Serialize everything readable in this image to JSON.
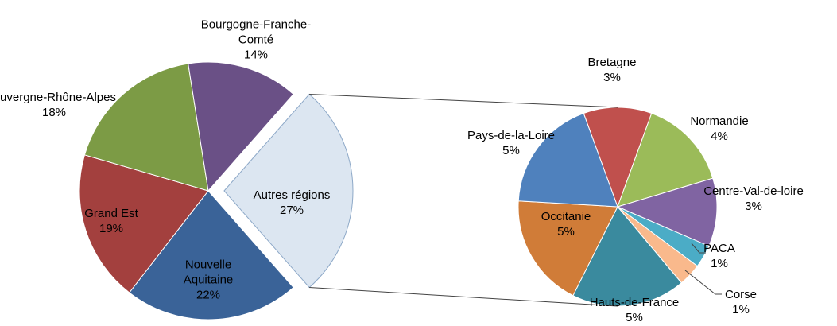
{
  "chart_data": [
    {
      "type": "pie",
      "categories": [
        "Autres régions",
        "Nouvelle Aquitaine",
        "Grand Est",
        "Auvergne-Rhône-Alpes",
        "Bourgogne-Franche-Comté"
      ],
      "values": [
        27,
        22,
        19,
        18,
        14
      ],
      "value_labels": [
        "27%",
        "22%",
        "19%",
        "18%",
        "14%"
      ],
      "colors": [
        "#dce6f1",
        "#3a6398",
        "#a3403e",
        "#7c9b45",
        "#6a5086"
      ]
    },
    {
      "type": "pie",
      "categories": [
        "Bretagne",
        "Normandie",
        "Centre-Val-de-loire",
        "PACA",
        "Corse",
        "Hauts-de-France",
        "Occitanie",
        "Pays-de-la-Loire"
      ],
      "values": [
        3,
        4,
        3,
        1,
        1,
        5,
        5,
        5
      ],
      "value_labels": [
        "3%",
        "4%",
        "3%",
        "1%",
        "1%",
        "5%",
        "5%",
        "5%"
      ],
      "colors": [
        "#c0504d",
        "#9bbb59",
        "#8064a2",
        "#4bacc6",
        "#f9b98c",
        "#3a8a9e",
        "#d07c38",
        "#4f81bd"
      ]
    }
  ]
}
